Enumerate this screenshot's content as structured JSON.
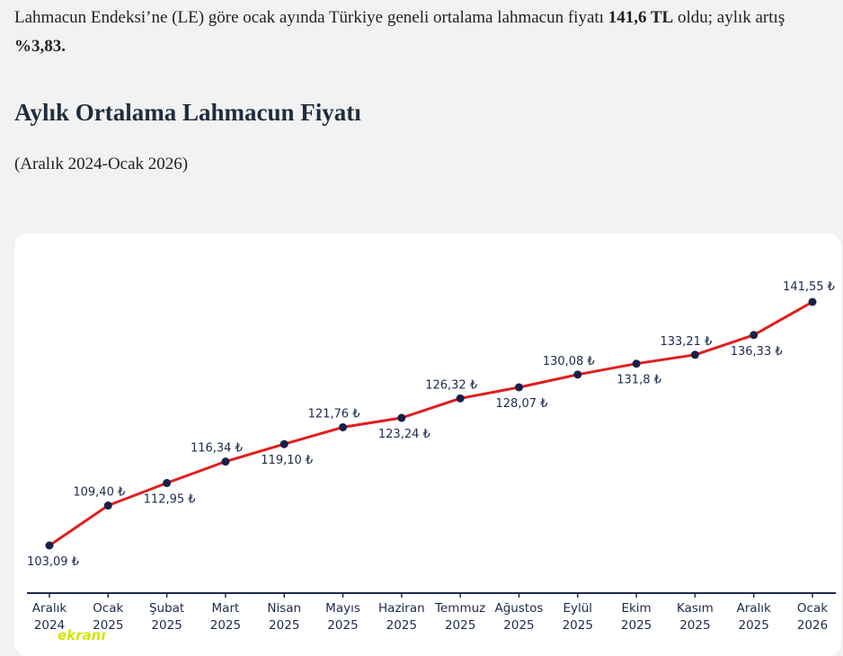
{
  "intro": {
    "part1": "Lahmacun Endeksi’ne (LE) göre ocak ayında Türkiye geneli ortalama lahmacun fiyatı ",
    "price": "141,6 TL",
    "part2": " oldu; aylık artış ",
    "increase": "%3,83."
  },
  "logo_text": "ekranı",
  "chart_data": {
    "type": "line",
    "title": "Aylık Ortalama Lahmacun Fiyatı",
    "subtitle": "(Aralık 2024-Ocak 2026)",
    "categories": [
      [
        "Aralık",
        "2024"
      ],
      [
        "Ocak",
        "2025"
      ],
      [
        "Şubat",
        "2025"
      ],
      [
        "Mart",
        "2025"
      ],
      [
        "Nisan",
        "2025"
      ],
      [
        "Mayıs",
        "2025"
      ],
      [
        "Haziran",
        "2025"
      ],
      [
        "Temmuz",
        "2025"
      ],
      [
        "Ağustos",
        "2025"
      ],
      [
        "Eylül",
        "2025"
      ],
      [
        "Ekim",
        "2025"
      ],
      [
        "Kasım",
        "2025"
      ],
      [
        "Aralık",
        "2025"
      ],
      [
        "Ocak",
        "2026"
      ]
    ],
    "values": [
      103.09,
      109.4,
      112.95,
      116.34,
      119.1,
      121.76,
      123.24,
      126.32,
      128.07,
      130.08,
      131.8,
      133.21,
      136.33,
      141.55
    ],
    "labels": [
      "103,09 ₺",
      "109,40 ₺",
      "112,95 ₺",
      "116,34 ₺",
      "119,10 ₺",
      "121,76 ₺",
      "123,24 ₺",
      "126,32 ₺",
      "128,07 ₺",
      "130,08 ₺",
      "131,8 ₺",
      "133,21 ₺",
      "136,33 ₺",
      "141,55 ₺"
    ],
    "label_position": [
      "below",
      "above",
      "below",
      "above",
      "below",
      "above",
      "below",
      "above",
      "below",
      "above",
      "below",
      "above",
      "below",
      "above"
    ],
    "ylim": [
      103.09,
      141.55
    ],
    "grid": false,
    "colors": {
      "line": "#e01e1e",
      "point": "#16204a",
      "axis": "#1d2a4f"
    }
  }
}
